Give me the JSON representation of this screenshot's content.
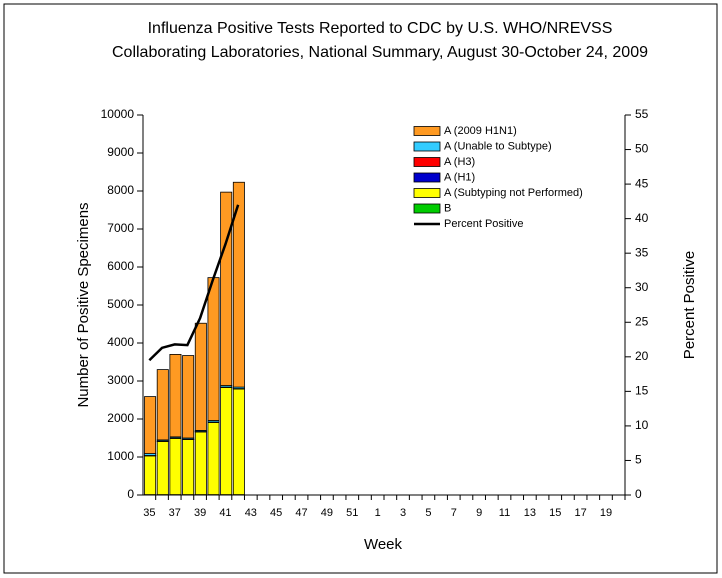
{
  "chart_data": {
    "type": "bar",
    "stacked": true,
    "title": "Influenza Positive Tests Reported to CDC by U.S. WHO/NREVSS",
    "subtitle": "Collaborating Laboratories, National Summary, August 30-October 24, 2009",
    "x_label": "Week",
    "y_label": "Number of Positive Specimens",
    "y2_label": "Percent Positive",
    "categories": [
      "35",
      null,
      "37",
      null,
      "39",
      null,
      "41",
      null,
      "43",
      null,
      "45",
      null,
      "47",
      null,
      "49",
      null,
      "51",
      null,
      "1",
      null,
      "3",
      null,
      "5",
      null,
      "7",
      null,
      "9",
      null,
      "11",
      null,
      "13",
      null,
      "15",
      null,
      "17",
      null,
      "19",
      null
    ],
    "ylim": [
      0,
      10000
    ],
    "yticks": [
      0,
      1000,
      2000,
      3000,
      4000,
      5000,
      6000,
      7000,
      8000,
      9000,
      10000
    ],
    "y2lim": [
      0,
      55
    ],
    "y2ticks": [
      0,
      5,
      10,
      15,
      20,
      25,
      30,
      35,
      40,
      45,
      50,
      55
    ],
    "series": [
      {
        "name": "A (2009 H1N1)",
        "color": "#ff9a22",
        "values": [
          1500,
          1850,
          2170,
          2170,
          2820,
          3760,
          5090,
          5390,
          null,
          null,
          null,
          null,
          null,
          null,
          null,
          null,
          null,
          null,
          null,
          null,
          null,
          null,
          null,
          null,
          null,
          null,
          null,
          null,
          null,
          null,
          null,
          null,
          null,
          null,
          null,
          null,
          null,
          null
        ]
      },
      {
        "name": "A (Unable to Subtype)",
        "color": "#33ccff",
        "values": [
          50,
          30,
          30,
          30,
          30,
          40,
          40,
          40,
          null,
          null,
          null,
          null,
          null,
          null,
          null,
          null,
          null,
          null,
          null,
          null,
          null,
          null,
          null,
          null,
          null,
          null,
          null,
          null,
          null,
          null,
          null,
          null,
          null,
          null,
          null,
          null,
          null,
          null
        ]
      },
      {
        "name": "A (H3)",
        "color": "#ff0000",
        "values": [
          5,
          5,
          5,
          5,
          5,
          5,
          5,
          5,
          null,
          null,
          null,
          null,
          null,
          null,
          null,
          null,
          null,
          null,
          null,
          null,
          null,
          null,
          null,
          null,
          null,
          null,
          null,
          null,
          null,
          null,
          null,
          null,
          null,
          null,
          null,
          null,
          null,
          null
        ]
      },
      {
        "name": "A (H1)",
        "color": "#0000cc",
        "values": [
          5,
          5,
          5,
          5,
          5,
          5,
          5,
          5,
          null,
          null,
          null,
          null,
          null,
          null,
          null,
          null,
          null,
          null,
          null,
          null,
          null,
          null,
          null,
          null,
          null,
          null,
          null,
          null,
          null,
          null,
          null,
          null,
          null,
          null,
          null,
          null,
          null,
          null
        ]
      },
      {
        "name": "A (Subtyping not Performed)",
        "color": "#ffff00",
        "values": [
          1020,
          1400,
          1480,
          1450,
          1650,
          1900,
          2820,
          2780,
          null,
          null,
          null,
          null,
          null,
          null,
          null,
          null,
          null,
          null,
          null,
          null,
          null,
          null,
          null,
          null,
          null,
          null,
          null,
          null,
          null,
          null,
          null,
          null,
          null,
          null,
          null,
          null,
          null,
          null
        ]
      },
      {
        "name": "B",
        "color": "#00cc00",
        "values": [
          10,
          10,
          10,
          10,
          10,
          10,
          10,
          10,
          null,
          null,
          null,
          null,
          null,
          null,
          null,
          null,
          null,
          null,
          null,
          null,
          null,
          null,
          null,
          null,
          null,
          null,
          null,
          null,
          null,
          null,
          null,
          null,
          null,
          null,
          null,
          null,
          null,
          null
        ]
      },
      {
        "name": "Percent Positive",
        "color": "#000000",
        "type": "line",
        "axis": "y2",
        "values": [
          19.5,
          21.3,
          21.8,
          21.7,
          25.6,
          31.1,
          36.3,
          42,
          null,
          null,
          null,
          null,
          null,
          null,
          null,
          null,
          null,
          null,
          null,
          null,
          null,
          null,
          null,
          null,
          null,
          null,
          null,
          null,
          null,
          null,
          null,
          null,
          null,
          null,
          null,
          null,
          null,
          null
        ]
      }
    ]
  }
}
